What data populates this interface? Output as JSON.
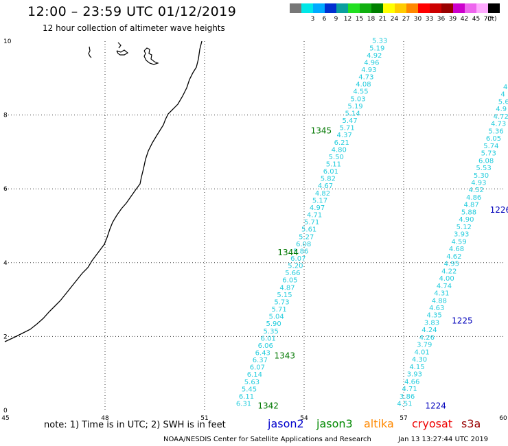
{
  "header": {
    "title": "12:00 – 23:59 UTC 01/12/2019",
    "subtitle": "12 hour collection of altimeter wave heights"
  },
  "color_scale": {
    "unit": "(ft)",
    "cells": [
      {
        "color": "#777777",
        "label": ""
      },
      {
        "color": "#00e7e7",
        "label": "3"
      },
      {
        "color": "#00aaff",
        "label": "6"
      },
      {
        "color": "#0030d0",
        "label": "9"
      },
      {
        "color": "#0a9f9f",
        "label": "12"
      },
      {
        "color": "#22e022",
        "label": "15"
      },
      {
        "color": "#10b010",
        "label": "18"
      },
      {
        "color": "#008000",
        "label": "21"
      },
      {
        "color": "#ffff00",
        "label": "24"
      },
      {
        "color": "#ffcc00",
        "label": "27"
      },
      {
        "color": "#ff8800",
        "label": "30"
      },
      {
        "color": "#ff0000",
        "label": "33"
      },
      {
        "color": "#cc0000",
        "label": "36"
      },
      {
        "color": "#990000",
        "label": "39"
      },
      {
        "color": "#cc00cc",
        "label": "42"
      },
      {
        "color": "#ee66ee",
        "label": "45"
      },
      {
        "color": "#ffaaff",
        "label": "70"
      },
      {
        "color": "#000000",
        "label": ""
      }
    ]
  },
  "map": {
    "x_ticks": [
      "45",
      "48",
      "51",
      "54",
      "57",
      "60"
    ],
    "y_ticks": [
      "0",
      "2",
      "4",
      "6",
      "8",
      "10"
    ],
    "x_range": [
      45,
      60
    ],
    "y_range": [
      0,
      10
    ],
    "tracks": [
      {
        "x_start": 51.95,
        "y_start": 0.12,
        "x_end": 56.05,
        "y_end": 9.95,
        "values": [
          "6.31",
          "6.11",
          "5.45",
          "5.63",
          "6.14",
          "6.07",
          "6.37",
          "6.43",
          "6.06",
          "6.01",
          "5.35",
          "5.90",
          "5.04",
          "5.71",
          "5.73",
          "5.15",
          "4.87",
          "6.05",
          "5.66",
          "5.20",
          "6.07",
          "5.86",
          "6.08",
          "5.27",
          "5.61",
          "5.71",
          "4.71",
          "4.97",
          "5.17",
          "4.82",
          "4.67",
          "5.82",
          "6.01",
          "5.11",
          "5.50",
          "4.80",
          "6.21",
          "4.37",
          "5.71",
          "5.47",
          "5.14",
          "5.19",
          "5.03",
          "4.55",
          "4.08",
          "4.73",
          "4.93",
          "4.96",
          "4.92",
          "5.19",
          "5.33"
        ]
      },
      {
        "x_start": 56.8,
        "y_start": 0.12,
        "x_end": 60.0,
        "y_end": 8.7,
        "values": [
          "4.51",
          "3.86",
          "4.71",
          "4.66",
          "3.93",
          "4.15",
          "4.30",
          "4.01",
          "3.79",
          "4.26",
          "4.24",
          "3.83",
          "4.35",
          "4.63",
          "4.88",
          "4.31",
          "4.74",
          "4.00",
          "4.22",
          "4.95",
          "4.62",
          "4.68",
          "4.59",
          "3.93",
          "5.12",
          "4.90",
          "5.88",
          "4.87",
          "4.86",
          "4.52",
          "4.93",
          "5.30",
          "5.53",
          "6.08",
          "5.73",
          "5.74",
          "6.05",
          "5.36",
          "4.73",
          "4.72",
          "4.9",
          "5.6",
          "4",
          "4"
        ]
      }
    ],
    "pass_labels": [
      {
        "text": "1342",
        "x": 52.6,
        "y": 0.05,
        "color": "#007700"
      },
      {
        "text": "1343",
        "x": 53.1,
        "y": 1.4,
        "color": "#007700"
      },
      {
        "text": "1344",
        "x": 53.2,
        "y": 4.2,
        "color": "#007700"
      },
      {
        "text": "1345",
        "x": 54.2,
        "y": 7.5,
        "color": "#007700"
      },
      {
        "text": "1224",
        "x": 57.65,
        "y": 0.05,
        "color": "#0000bb"
      },
      {
        "text": "1225",
        "x": 58.45,
        "y": 2.35,
        "color": "#0000bb"
      },
      {
        "text": "1226",
        "x": 59.6,
        "y": 5.35,
        "color": "#0000bb"
      }
    ]
  },
  "footer": {
    "note": "note:  1) Time is in UTC;  2) SWH is in feet",
    "satellites": [
      {
        "name": "jason2",
        "color": "#0000cc"
      },
      {
        "name": "jason3",
        "color": "#008800"
      },
      {
        "name": "altika",
        "color": "#ff8800"
      },
      {
        "name": "cryosat",
        "color": "#ee0000"
      },
      {
        "name": "s3a",
        "color": "#990000"
      }
    ],
    "credit": "NOAA/NESDIS Center for Satellite Applications and Research",
    "timestamp": "Jan 13 13:27:44 UTC 2019"
  }
}
